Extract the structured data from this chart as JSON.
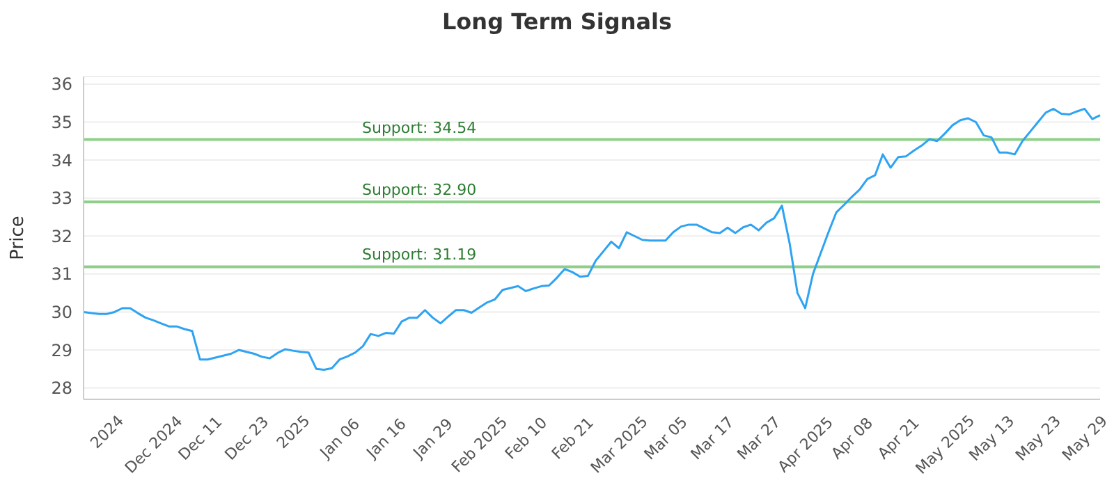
{
  "chart_data": {
    "type": "line",
    "title": "Long Term Signals",
    "ylabel": "Price",
    "categories": [
      null,
      null,
      null,
      "2024",
      null,
      null,
      null,
      null,
      null,
      "Dec 2024",
      null,
      null,
      null,
      null,
      null,
      "Dec 11",
      null,
      null,
      null,
      null,
      null,
      "Dec 23",
      null,
      null,
      null,
      null,
      null,
      "2025",
      null,
      null,
      null,
      null,
      null,
      "Jan 06",
      null,
      null,
      null,
      null,
      null,
      "Jan 16",
      null,
      null,
      null,
      null,
      null,
      "Jan 29",
      null,
      null,
      null,
      null,
      null,
      "Feb 2025",
      null,
      null,
      null,
      null,
      null,
      "Feb 10",
      null,
      null,
      null,
      null,
      null,
      "Feb 21",
      null,
      null,
      null,
      null,
      null,
      "Mar 2025",
      null,
      null,
      null,
      null,
      null,
      "Mar 05",
      null,
      null,
      null,
      null,
      null,
      "Mar 17",
      null,
      null,
      null,
      null,
      null,
      "Mar 27",
      null,
      null,
      null,
      null,
      null,
      "Apr 2025",
      null,
      null,
      null,
      null,
      null,
      "Apr 08",
      null,
      null,
      null,
      null,
      null,
      "Apr 21",
      null,
      null,
      null,
      null,
      null,
      "May 2025",
      null,
      null,
      null,
      null,
      null,
      "May 13",
      null,
      null,
      null,
      null,
      null,
      "May 23",
      null,
      null,
      null,
      null,
      null,
      "May 29",
      null,
      null
    ],
    "series": [
      {
        "color": "#2ea3f2",
        "values": [
          30.0,
          29.97,
          29.95,
          29.95,
          30.0,
          30.1,
          30.1,
          29.97,
          29.85,
          29.78,
          29.7,
          29.62,
          29.62,
          29.55,
          29.5,
          28.75,
          28.75,
          28.8,
          28.85,
          28.9,
          29.0,
          28.95,
          28.9,
          28.82,
          28.78,
          28.92,
          29.02,
          28.98,
          28.95,
          28.93,
          28.5,
          28.48,
          28.52,
          28.75,
          28.83,
          28.93,
          29.1,
          29.42,
          29.37,
          29.45,
          29.43,
          29.75,
          29.85,
          29.85,
          30.05,
          29.85,
          29.7,
          29.88,
          30.05,
          30.05,
          29.98,
          30.12,
          30.25,
          30.33,
          30.58,
          30.63,
          30.68,
          30.55,
          30.62,
          30.68,
          30.7,
          30.9,
          31.13,
          31.05,
          30.93,
          30.95,
          31.35,
          31.6,
          31.85,
          31.68,
          32.1,
          32.0,
          31.9,
          31.88,
          31.88,
          31.88,
          32.1,
          32.25,
          32.3,
          32.3,
          32.2,
          32.1,
          32.08,
          32.22,
          32.08,
          32.23,
          32.3,
          32.15,
          32.35,
          32.47,
          32.8,
          31.8,
          30.5,
          30.1,
          31.0,
          31.55,
          32.1,
          32.62,
          32.82,
          33.03,
          33.22,
          33.5,
          33.6,
          34.15,
          33.8,
          34.08,
          34.1,
          34.25,
          34.38,
          34.55,
          34.5,
          34.7,
          34.92,
          35.05,
          35.1,
          35.0,
          34.65,
          34.6,
          34.2,
          34.2,
          34.15,
          34.5,
          34.75,
          35.0,
          35.25,
          35.35,
          35.22,
          35.2,
          35.28,
          35.35,
          35.08,
          35.18
        ]
      }
    ],
    "ylim": [
      27.7,
      36.2
    ],
    "yticks": [
      28,
      29,
      30,
      31,
      32,
      33,
      34,
      35,
      36
    ],
    "grid": "y",
    "marker": "none",
    "ref_lines": [
      {
        "axis": "y",
        "value": 34.54,
        "label": "Support: 34.54",
        "color": "#8fcf8a"
      },
      {
        "axis": "y",
        "value": 32.9,
        "label": "Support: 32.90",
        "color": "#8fcf8a"
      },
      {
        "axis": "y",
        "value": 31.19,
        "label": "Support: 31.19",
        "color": "#8fcf8a"
      }
    ]
  }
}
